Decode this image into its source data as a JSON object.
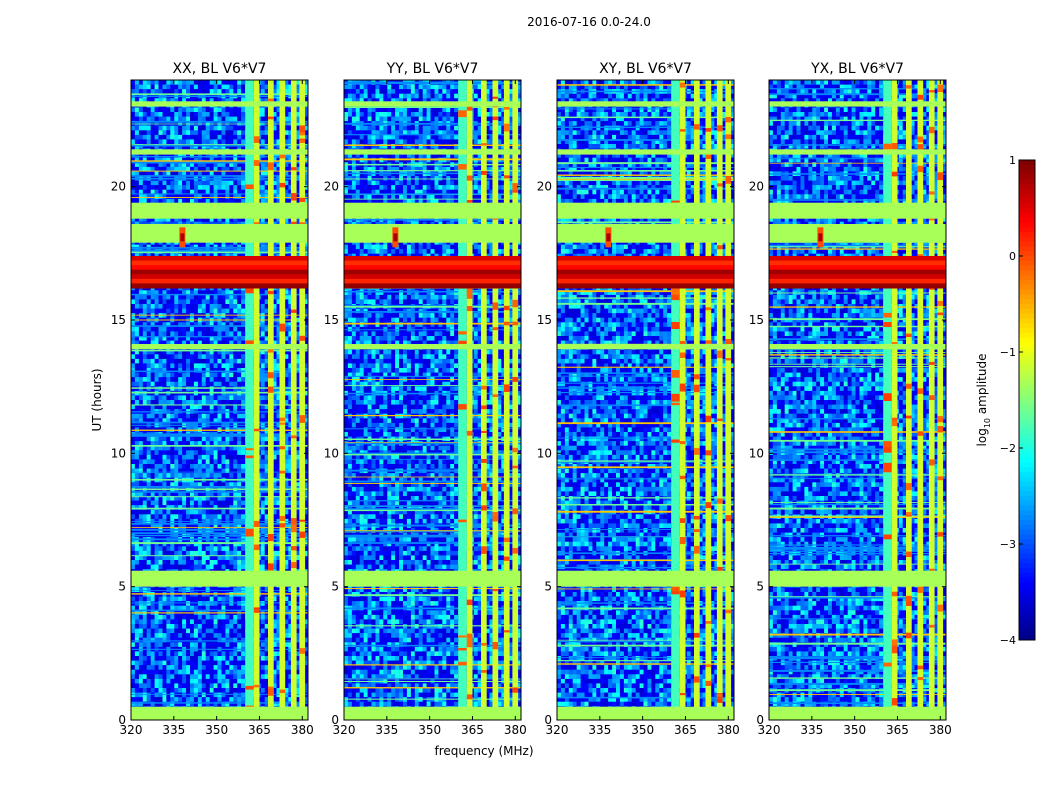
{
  "chart_data": {
    "type": "heatmap",
    "suptitle": "2016-07-16 0.0-24.0",
    "xlabel": "frequency (MHz)",
    "ylabel": "UT (hours)",
    "xlim": [
      320,
      382
    ],
    "ylim": [
      0,
      24
    ],
    "xticks": [
      "320",
      "335",
      "350",
      "365",
      "380"
    ],
    "yticks": [
      "0",
      "5",
      "10",
      "15",
      "20"
    ],
    "panels": [
      {
        "title": "XX, BL V6*V7"
      },
      {
        "title": "YY, BL V6*V7"
      },
      {
        "title": "XY, BL V6*V7"
      },
      {
        "title": "YX, BL V6*V7"
      }
    ],
    "colorbar": {
      "label_prefix": "log",
      "label_sub": "10",
      "label_suffix": " amplitude",
      "range": [
        -4,
        1
      ],
      "ticks": [
        "1",
        "0",
        "−1",
        "−2",
        "−3",
        "−4"
      ],
      "colormap": "jet"
    },
    "features": {
      "rfi_freq_bands_mhz": [
        [
          360,
          363
        ],
        [
          363,
          365
        ],
        [
          368,
          370
        ],
        [
          372,
          374
        ],
        [
          376,
          378
        ],
        [
          379,
          381
        ]
      ],
      "broadband_rfi_ut_hours": [
        [
          0.0,
          0.5
        ],
        [
          5.0,
          5.6
        ],
        [
          13.9,
          14.1
        ],
        [
          16.2,
          17.4
        ],
        [
          17.9,
          18.6
        ],
        [
          18.8,
          19.4
        ],
        [
          21.2,
          21.4
        ],
        [
          23.0,
          23.2
        ]
      ],
      "strong_emission_ut_hours": [
        16.2,
        17.4
      ],
      "feature_point": {
        "freq_mhz": 338,
        "ut_hours": 18.1
      }
    }
  }
}
